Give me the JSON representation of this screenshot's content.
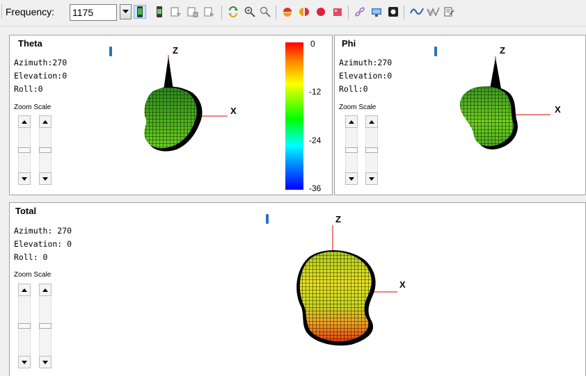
{
  "toolbar": {
    "frequency_label": "Frequency:",
    "frequency_value": "1175",
    "icons": [
      "antenna-green-icon",
      "antenna-icon",
      "export-a-icon",
      "export-b-icon",
      "export-c-icon",
      "rotate-icon",
      "zoom-in-icon",
      "zoom-out-icon",
      "half-sphere-icon",
      "split-sphere-icon",
      "sphere-icon",
      "cube-icon",
      "chain-icon",
      "monitor-icon",
      "record-icon",
      "wave-icon",
      "double-wave-icon",
      "notes-icon"
    ]
  },
  "colors": {
    "accent": "#2a73b8",
    "axis": "#e00000",
    "scale_top": "#ff0000",
    "scale_bottom": "#0000ff"
  },
  "panels": {
    "theta": {
      "title": "Theta",
      "azimuth": "Azimuth:270",
      "elevation": "Elevation:0",
      "roll": "Roll:0",
      "zoom_label": "Zoom Scale",
      "axis_z": "Z",
      "axis_x": "X"
    },
    "phi": {
      "title": "Phi",
      "azimuth": "Azimuth:270",
      "elevation": "Elevation:0",
      "roll": "Roll:0",
      "zoom_label": "Zoom Scale",
      "axis_z": "Z",
      "axis_x": "X"
    },
    "total": {
      "title": "Total",
      "azimuth": "Azimuth: 270",
      "elevation": "Elevation: 0",
      "roll": "Roll: 0",
      "zoom_label": "Zoom Scale",
      "axis_z": "Z",
      "axis_x": "X"
    }
  },
  "color_scale": {
    "ticks": [
      "0",
      "-12",
      "-24",
      "-36"
    ]
  }
}
